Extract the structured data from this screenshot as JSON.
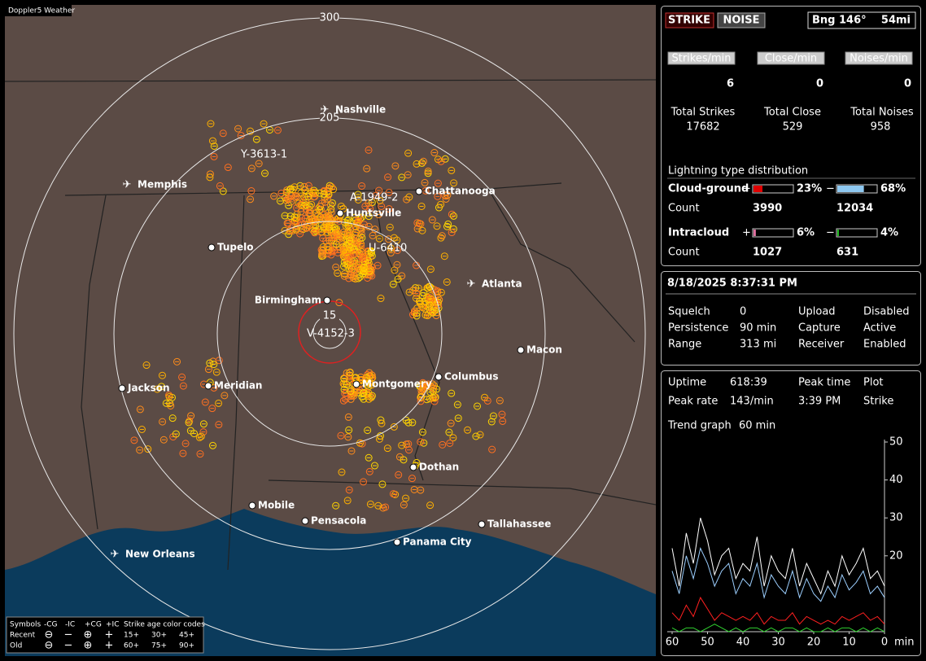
{
  "window_title": "Doppler5 Weather",
  "map": {
    "range_labels": [
      "300",
      "205",
      "15"
    ],
    "cities": [
      "Nashville",
      "Chattanooga",
      "Memphis",
      "Huntsville",
      "Tupelo",
      "Atlanta",
      "Birmingham",
      "Macon",
      "Jackson",
      "Meridian",
      "Montgomery",
      "Columbus",
      "Dothan",
      "Mobile",
      "Pensacola",
      "Tallahassee",
      "Panama City",
      "New Orleans"
    ],
    "storm_labels": [
      "Y-3613-1",
      "A-1949-2",
      "U-6410",
      "V-4152-3"
    ],
    "legend": {
      "header": [
        "Symbols",
        "-CG",
        "-IC",
        "+CG",
        "+IC",
        "Strike age color codes"
      ],
      "rows": [
        {
          "label": "Recent",
          "symbols": [
            "⊖",
            "−",
            "⊕",
            "+"
          ],
          "ages": [
            "15+",
            "30+",
            "45+"
          ]
        },
        {
          "label": "Old",
          "symbols": [
            "⊖",
            "−",
            "⊕",
            "+"
          ],
          "ages": [
            "60+",
            "75+",
            "90+"
          ]
        }
      ]
    }
  },
  "panel": {
    "mode_buttons": [
      "STRIKE",
      "NOISE"
    ],
    "bearing": "Bng 146°",
    "distance": "54mi",
    "rates": [
      {
        "label": "Strikes/min",
        "value": 6,
        "total_label": "Total Strikes",
        "total": 17682
      },
      {
        "label": "Close/min",
        "value": 0,
        "total_label": "Total Close",
        "total": 529
      },
      {
        "label": "Noises/min",
        "value": 0,
        "total_label": "Total Noises",
        "total": 958
      }
    ],
    "distribution": {
      "title": "Lightning type distribution",
      "signs": [
        "+",
        "−"
      ],
      "count_label": "Count",
      "rows": [
        {
          "label": "Cloud-ground",
          "pos_percent": 23,
          "pos_label": "23%",
          "neg_percent": 68,
          "neg_label": "68%",
          "pos_count": 3990,
          "neg_count": 12034
        },
        {
          "label": "Intracloud",
          "pos_percent": 6,
          "pos_label": "6%",
          "neg_percent": 4,
          "neg_label": "4%",
          "pos_count": 1027,
          "neg_count": 631
        }
      ]
    },
    "datetime": "8/18/2025 8:37:31 PM",
    "settings": [
      [
        "Squelch",
        "0",
        "Upload",
        "Disabled"
      ],
      [
        "Persistence",
        "90 min",
        "Capture",
        "Active"
      ],
      [
        "Range",
        "313 mi",
        "Receiver",
        "Enabled"
      ]
    ],
    "stats": [
      [
        "Uptime",
        "618:39",
        "Peak time",
        "Plot"
      ],
      [
        "Peak rate",
        "143/min",
        "3:39 PM",
        "Strike"
      ]
    ],
    "trend_label": "Trend graph",
    "trend_window": "60 min"
  },
  "chart_data": {
    "type": "line",
    "x": [
      60,
      58,
      56,
      54,
      52,
      50,
      48,
      46,
      44,
      42,
      40,
      38,
      36,
      34,
      32,
      30,
      28,
      26,
      24,
      22,
      20,
      18,
      16,
      14,
      12,
      10,
      8,
      6,
      4,
      2,
      0
    ],
    "xlim": [
      60,
      0
    ],
    "xticks": [
      60,
      50,
      40,
      30,
      20,
      10,
      0
    ],
    "x_unit": "min",
    "ylim": [
      0,
      50
    ],
    "yticks": [
      20,
      30,
      40,
      50
    ],
    "series": [
      {
        "color": "#ffffff",
        "values": [
          22,
          12,
          26,
          18,
          30,
          24,
          15,
          20,
          22,
          14,
          18,
          16,
          25,
          12,
          20,
          16,
          14,
          22,
          12,
          18,
          14,
          10,
          16,
          12,
          20,
          15,
          18,
          22,
          14,
          16,
          12
        ]
      },
      {
        "color": "#9ccfff",
        "values": [
          16,
          10,
          20,
          14,
          22,
          18,
          12,
          16,
          18,
          10,
          14,
          12,
          18,
          9,
          15,
          12,
          10,
          16,
          9,
          14,
          10,
          8,
          12,
          9,
          15,
          11,
          13,
          16,
          10,
          12,
          9
        ]
      },
      {
        "color": "#ff2020",
        "values": [
          5,
          3,
          7,
          4,
          9,
          6,
          3,
          5,
          4,
          3,
          4,
          3,
          5,
          2,
          4,
          3,
          3,
          5,
          2,
          4,
          3,
          2,
          3,
          2,
          4,
          3,
          4,
          5,
          3,
          4,
          2
        ]
      },
      {
        "color": "#30d030",
        "values": [
          1,
          0,
          1,
          1,
          0,
          1,
          2,
          1,
          0,
          1,
          0,
          1,
          1,
          0,
          1,
          0,
          1,
          1,
          0,
          1,
          0,
          0,
          1,
          0,
          1,
          1,
          0,
          1,
          0,
          1,
          0
        ]
      }
    ]
  }
}
